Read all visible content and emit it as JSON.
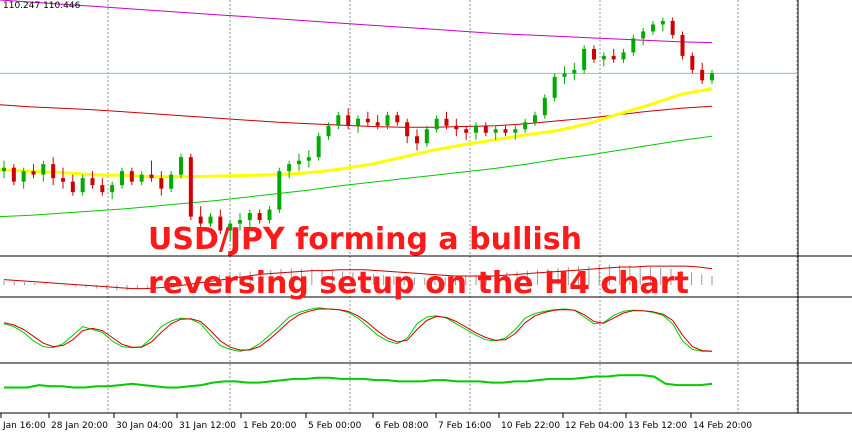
{
  "header": {
    "price_info": "110.247 110.446"
  },
  "headline": {
    "line1": "USD/JPY forming a bullish",
    "line2": "reversing setup on the H4 chart"
  },
  "colors": {
    "candle_bull": "#00aa00",
    "candle_bear": "#cc0000",
    "ma_yellow": "#ffff00",
    "ma_green": "#00cc00",
    "ma_red": "#cc0000",
    "ma_magenta": "#cc00cc",
    "price_line": "#a0b4b4",
    "grid": "#000000",
    "headline": "#ff1a1a"
  },
  "chart_data": [
    {
      "type": "candlestick",
      "panel": "price",
      "instrument": "USD/JPY",
      "timeframe": "H4",
      "candles": [
        [
          109.3,
          109.45,
          109.2,
          109.35
        ],
        [
          109.35,
          109.4,
          109.1,
          109.15
        ],
        [
          109.15,
          109.35,
          109.05,
          109.3
        ],
        [
          109.3,
          109.4,
          109.2,
          109.25
        ],
        [
          109.25,
          109.45,
          109.15,
          109.4
        ],
        [
          109.4,
          109.5,
          109.1,
          109.2
        ],
        [
          109.2,
          109.35,
          109.05,
          109.15
        ],
        [
          109.15,
          109.25,
          108.95,
          109.0
        ],
        [
          109.0,
          109.25,
          108.95,
          109.2
        ],
        [
          109.2,
          109.3,
          109.05,
          109.1
        ],
        [
          109.1,
          109.2,
          108.95,
          109.0
        ],
        [
          109.0,
          109.15,
          108.9,
          109.1
        ],
        [
          109.1,
          109.35,
          109.05,
          109.3
        ],
        [
          109.3,
          109.35,
          109.1,
          109.15
        ],
        [
          109.15,
          109.3,
          109.1,
          109.25
        ],
        [
          109.25,
          109.45,
          109.15,
          109.2
        ],
        [
          109.2,
          109.3,
          108.95,
          109.05
        ],
        [
          109.05,
          109.3,
          109.0,
          109.25
        ],
        [
          109.25,
          109.55,
          109.2,
          109.5
        ],
        [
          109.5,
          109.55,
          108.6,
          108.65
        ],
        [
          108.65,
          108.8,
          108.45,
          108.55
        ],
        [
          108.55,
          108.7,
          108.5,
          108.65
        ],
        [
          108.65,
          108.75,
          108.4,
          108.45
        ],
        [
          108.45,
          108.6,
          108.3,
          108.55
        ],
        [
          108.55,
          108.7,
          108.45,
          108.6
        ],
        [
          108.6,
          108.75,
          108.5,
          108.7
        ],
        [
          108.7,
          108.75,
          108.55,
          108.6
        ],
        [
          108.6,
          108.8,
          108.55,
          108.75
        ],
        [
          108.75,
          109.35,
          108.7,
          109.3
        ],
        [
          109.3,
          109.45,
          109.2,
          109.4
        ],
        [
          109.4,
          109.55,
          109.3,
          109.45
        ],
        [
          109.45,
          109.6,
          109.35,
          109.5
        ],
        [
          109.5,
          109.85,
          109.45,
          109.8
        ],
        [
          109.8,
          110.0,
          109.75,
          109.95
        ],
        [
          109.95,
          110.15,
          109.9,
          110.1
        ],
        [
          110.1,
          110.2,
          109.9,
          109.95
        ],
        [
          109.95,
          110.1,
          109.85,
          110.05
        ],
        [
          110.05,
          110.15,
          109.95,
          110.0
        ],
        [
          110.0,
          110.1,
          109.9,
          109.95
        ],
        [
          109.95,
          110.15,
          109.9,
          110.1
        ],
        [
          110.1,
          110.15,
          109.95,
          110.0
        ],
        [
          110.0,
          110.05,
          109.7,
          109.8
        ],
        [
          109.8,
          109.9,
          109.6,
          109.7
        ],
        [
          109.7,
          109.95,
          109.65,
          109.9
        ],
        [
          109.9,
          110.1,
          109.85,
          110.05
        ],
        [
          110.05,
          110.15,
          109.9,
          109.95
        ],
        [
          109.95,
          110.05,
          109.8,
          109.9
        ],
        [
          109.9,
          109.95,
          109.75,
          109.85
        ],
        [
          109.85,
          110.0,
          109.75,
          109.95
        ],
        [
          109.95,
          110.0,
          109.8,
          109.85
        ],
        [
          109.85,
          109.95,
          109.75,
          109.9
        ],
        [
          109.9,
          109.95,
          109.8,
          109.85
        ],
        [
          109.85,
          109.95,
          109.75,
          109.9
        ],
        [
          109.9,
          110.05,
          109.85,
          110.0
        ],
        [
          110.0,
          110.15,
          109.95,
          110.1
        ],
        [
          110.1,
          110.4,
          110.05,
          110.35
        ],
        [
          110.35,
          110.7,
          110.3,
          110.65
        ],
        [
          110.65,
          110.8,
          110.55,
          110.7
        ],
        [
          110.7,
          110.85,
          110.6,
          110.75
        ],
        [
          110.75,
          111.1,
          110.7,
          111.05
        ],
        [
          111.05,
          111.1,
          110.85,
          110.9
        ],
        [
          110.9,
          111.0,
          110.8,
          110.95
        ],
        [
          110.95,
          111.05,
          110.85,
          110.9
        ],
        [
          110.9,
          111.05,
          110.85,
          111.0
        ],
        [
          111.0,
          111.25,
          110.95,
          111.2
        ],
        [
          111.2,
          111.35,
          111.1,
          111.3
        ],
        [
          111.3,
          111.45,
          111.25,
          111.4
        ],
        [
          111.4,
          111.5,
          111.3,
          111.45
        ],
        [
          111.45,
          111.5,
          111.2,
          111.25
        ],
        [
          111.25,
          111.3,
          110.9,
          110.95
        ],
        [
          110.95,
          111.0,
          110.7,
          110.75
        ],
        [
          110.75,
          110.85,
          110.55,
          110.6
        ],
        [
          110.6,
          110.75,
          110.55,
          110.7
        ]
      ],
      "ma_yellow": [
        109.32,
        109.3,
        109.28,
        109.25,
        109.24,
        109.22,
        109.22,
        109.23,
        109.24,
        109.25,
        109.28,
        109.33,
        109.4,
        109.5,
        109.6,
        109.68,
        109.75,
        109.82,
        109.88,
        109.98,
        110.12,
        110.25,
        110.4,
        110.48
      ],
      "ma_green": [
        108.65,
        108.67,
        108.7,
        108.73,
        108.76,
        108.8,
        108.84,
        108.88,
        108.93,
        108.98,
        109.03,
        109.09,
        109.14,
        109.19,
        109.24,
        109.29,
        109.34,
        109.4,
        109.47,
        109.53,
        109.6,
        109.67,
        109.74,
        109.8
      ],
      "ma_red": [
        110.25,
        110.22,
        110.2,
        110.18,
        110.15,
        110.12,
        110.09,
        110.06,
        110.03,
        110.0,
        109.98,
        109.96,
        109.94,
        109.93,
        109.93,
        109.94,
        109.95,
        109.98,
        110.02,
        110.06,
        110.11,
        110.16,
        110.2,
        110.23
      ],
      "ma_magenta": [
        111.75,
        111.72,
        111.69,
        111.66,
        111.63,
        111.6,
        111.57,
        111.54,
        111.51,
        111.48,
        111.45,
        111.42,
        111.39,
        111.36,
        111.33,
        111.3,
        111.27,
        111.25,
        111.23,
        111.21,
        111.19,
        111.17,
        111.15,
        111.14
      ],
      "current_price": 110.7,
      "ylim": [
        108.1,
        111.75
      ]
    },
    {
      "type": "histogram",
      "panel": "macd",
      "values": [
        0.05,
        0.04,
        0.03,
        0.02,
        0.01,
        0.0,
        -0.01,
        -0.02,
        -0.03,
        -0.04,
        -0.05,
        -0.06,
        -0.06,
        -0.05,
        -0.03,
        -0.01,
        0.01,
        0.03,
        0.05,
        0.07,
        0.09,
        0.11,
        0.13,
        0.14,
        0.15,
        0.16,
        0.17,
        0.18,
        0.18,
        0.18,
        0.18,
        0.17,
        0.16,
        0.15,
        0.14,
        0.13,
        0.12,
        0.11,
        0.1,
        0.09,
        0.08,
        0.08,
        0.08,
        0.08,
        0.09,
        0.1,
        0.11,
        0.12,
        0.13,
        0.14,
        0.15,
        0.16,
        0.17,
        0.18,
        0.19,
        0.2,
        0.21,
        0.21,
        0.22,
        0.22,
        0.22,
        0.22,
        0.21,
        0.2,
        0.19,
        0.18,
        0.16,
        0.14,
        0.12,
        0.1
      ],
      "signal": [
        0.06,
        0.05,
        0.04,
        0.03,
        0.02,
        0.01,
        0.0,
        -0.01,
        -0.02,
        -0.03,
        -0.04,
        -0.04,
        -0.03,
        -0.02,
        0.0,
        0.02,
        0.04,
        0.06,
        0.08,
        0.1,
        0.12,
        0.13,
        0.14,
        0.15,
        0.16,
        0.16,
        0.17,
        0.17,
        0.17,
        0.16,
        0.15,
        0.14,
        0.13,
        0.12,
        0.11,
        0.1,
        0.1,
        0.1,
        0.1,
        0.11,
        0.12,
        0.13,
        0.14,
        0.15,
        0.16,
        0.17,
        0.18,
        0.19,
        0.2,
        0.2,
        0.21,
        0.21,
        0.21,
        0.21,
        0.2,
        0.18
      ],
      "ylim": [
        -0.1,
        0.3
      ]
    },
    {
      "type": "line",
      "panel": "stochastic",
      "main": [
        60,
        55,
        45,
        30,
        20,
        18,
        25,
        40,
        55,
        50,
        45,
        30,
        20,
        18,
        20,
        35,
        55,
        65,
        70,
        68,
        60,
        40,
        22,
        15,
        12,
        15,
        25,
        40,
        55,
        72,
        80,
        85,
        88,
        86,
        85,
        80,
        70,
        55,
        40,
        30,
        25,
        35,
        60,
        72,
        74,
        70,
        60,
        50,
        40,
        32,
        30,
        35,
        50,
        70,
        78,
        82,
        85,
        86,
        84,
        72,
        60,
        62,
        75,
        82,
        84,
        83,
        80,
        75,
        60,
        30,
        15,
        12,
        12
      ],
      "signal": [
        62,
        58,
        50,
        38,
        26,
        20,
        22,
        32,
        48,
        52,
        48,
        36,
        24,
        19,
        19,
        28,
        45,
        60,
        68,
        69,
        64,
        48,
        30,
        19,
        14,
        14,
        20,
        33,
        48,
        64,
        76,
        82,
        86,
        86,
        85,
        82,
        74,
        62,
        47,
        35,
        28,
        31,
        50,
        66,
        73,
        71,
        64,
        54,
        44,
        36,
        31,
        32,
        43,
        62,
        74,
        80,
        84,
        85,
        84,
        76,
        64,
        61,
        70,
        79,
        83,
        83,
        81,
        77,
        66,
        40,
        20,
        13,
        12
      ],
      "ylim": [
        0,
        100
      ]
    },
    {
      "type": "line",
      "panel": "indicator",
      "values": [
        20,
        20,
        20,
        22,
        21,
        21,
        20,
        20,
        21,
        21,
        22,
        23,
        22,
        21,
        20,
        20,
        21,
        22,
        24,
        25,
        25,
        24,
        24,
        25,
        26,
        27,
        27,
        28,
        28,
        27,
        27,
        27,
        26,
        26,
        25,
        25,
        25,
        26,
        26,
        25,
        25,
        25,
        24,
        24,
        25,
        25,
        26,
        27,
        27,
        27,
        28,
        29,
        29,
        30,
        30,
        30,
        29,
        23,
        22,
        22,
        22,
        23
      ],
      "ylim": [
        0,
        40
      ]
    }
  ],
  "x_axis": {
    "ticks": [
      "Jan 16:00",
      "28 Jan 20:00",
      "30 Jan 04:00",
      "31 Jan 12:00",
      "1 Feb 20:00",
      "5 Feb 00:00",
      "6 Feb 08:00",
      "7 Feb 16:00",
      "10 Feb 22:00",
      "12 Feb 04:00",
      "13 Feb 12:00",
      "14 Feb 20:00"
    ]
  }
}
